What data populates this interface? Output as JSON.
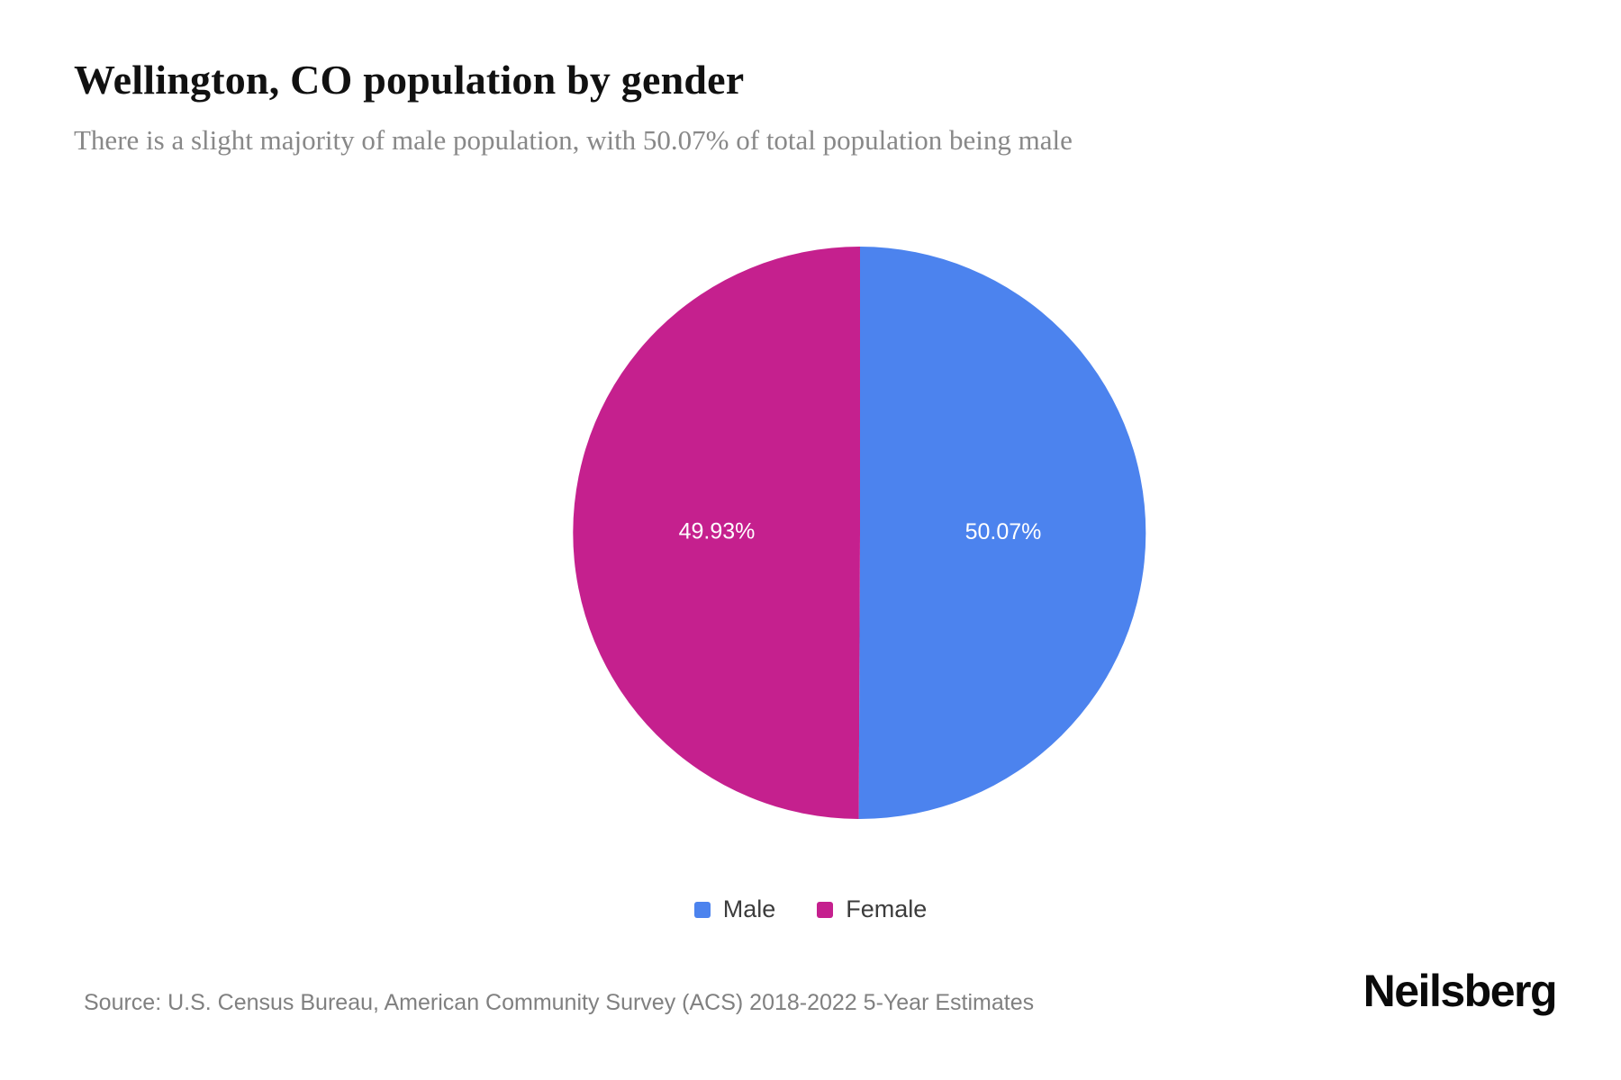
{
  "page": {
    "title": "Wellington, CO population by gender",
    "subtitle": "There is a slight majority of male population, with 50.07% of total population being male",
    "source": "Source: U.S. Census Bureau, American Community Survey (ACS) 2018-2022 5-Year Estimates",
    "brand": "Neilsberg"
  },
  "chart_data": {
    "type": "pie",
    "title": "Wellington, CO population by gender",
    "categories": [
      "Male",
      "Female"
    ],
    "values": [
      50.07,
      49.93
    ],
    "slices": [
      {
        "label": "Male",
        "value": 50.07,
        "display": "50.07%",
        "color": "#4c83ee"
      },
      {
        "label": "Female",
        "value": 49.93,
        "display": "49.93%",
        "color": "#c5208e"
      }
    ],
    "start_angle_deg": 0,
    "direction": "clockwise",
    "legend_position": "bottom",
    "label_radius_ratio": 0.5
  }
}
